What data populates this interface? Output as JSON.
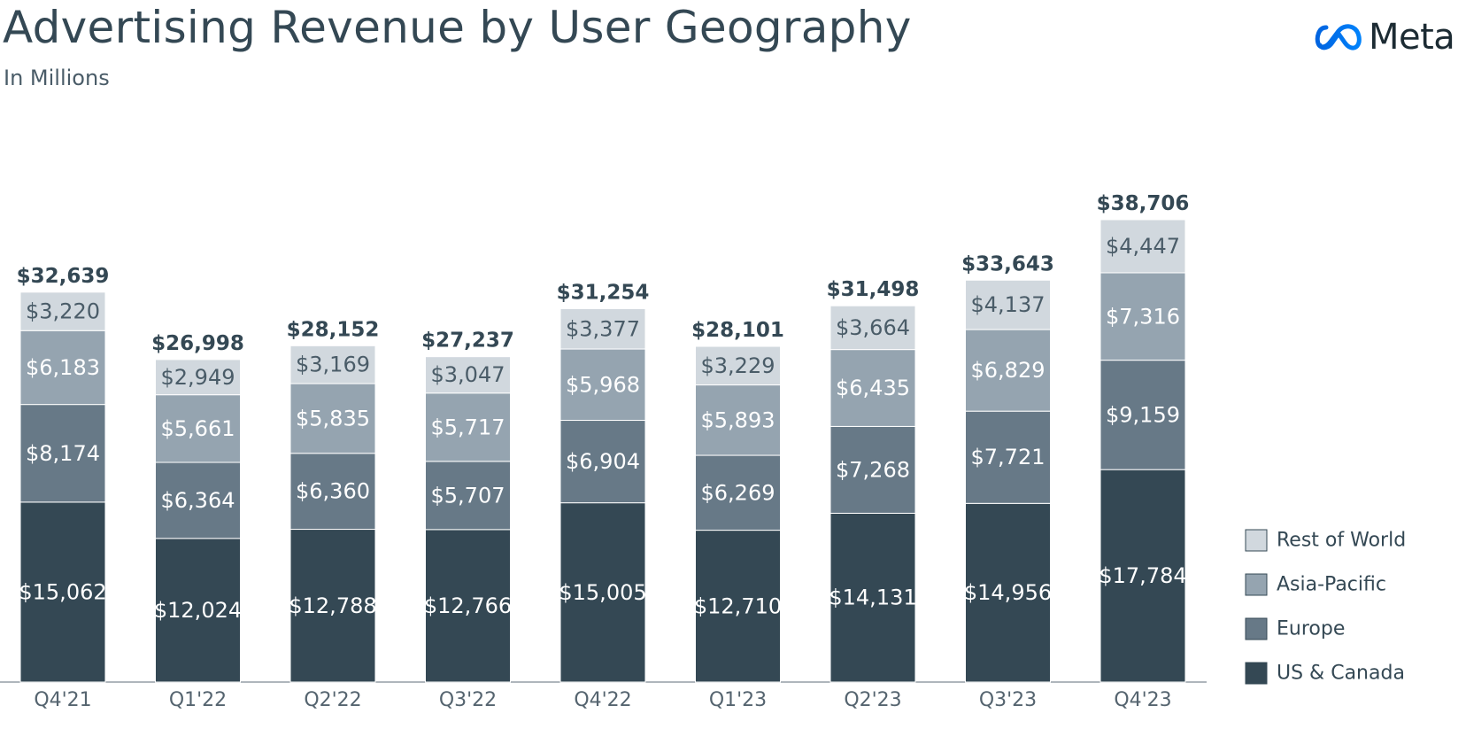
{
  "header": {
    "title": "Advertising Revenue by User Geography",
    "subtitle": "In Millions",
    "logo_text": "Meta"
  },
  "chart_data": {
    "type": "bar",
    "stacked": true,
    "title": "Advertising Revenue by User Geography",
    "subtitle": "In Millions",
    "xlabel": "",
    "ylabel": "",
    "ylim": [
      0,
      38706
    ],
    "grid": false,
    "legend_position": "bottom-right",
    "categories": [
      "Q4'21",
      "Q1'22",
      "Q2'22",
      "Q3'22",
      "Q4'22",
      "Q1'23",
      "Q2'23",
      "Q3'23",
      "Q4'23"
    ],
    "series": [
      {
        "name": "US & Canada",
        "color": "#344854",
        "label_color": "#ffffff",
        "values": [
          15062,
          12024,
          12788,
          12766,
          15005,
          12710,
          14131,
          14956,
          17784
        ],
        "labels": [
          "$15,062",
          "$12,024",
          "$12,788",
          "$12,766",
          "$15,005",
          "$12,710",
          "$14,131",
          "$14,956",
          "$17,784"
        ]
      },
      {
        "name": "Europe",
        "color": "#677987",
        "label_color": "#ffffff",
        "values": [
          8174,
          6364,
          6360,
          5707,
          6904,
          6269,
          7268,
          7721,
          9159
        ],
        "labels": [
          "$8,174",
          "$6,364",
          "$6,360",
          "$5,707",
          "$6,904",
          "$6,269",
          "$7,268",
          "$7,721",
          "$9,159"
        ]
      },
      {
        "name": "Asia-Pacific",
        "color": "#95a4b0",
        "label_color": "#ffffff",
        "values": [
          6183,
          5661,
          5835,
          5717,
          5968,
          5893,
          6435,
          6829,
          7316
        ],
        "labels": [
          "$6,183",
          "$5,661",
          "$5,835",
          "$5,717",
          "$5,968",
          "$5,893",
          "$6,435",
          "$6,829",
          "$7,316"
        ]
      },
      {
        "name": "Rest of World",
        "color": "#d1d8de",
        "label_color": "#4a5c68",
        "values": [
          3220,
          2949,
          3169,
          3047,
          3377,
          3229,
          3664,
          4137,
          4447
        ],
        "labels": [
          "$3,220",
          "$2,949",
          "$3,169",
          "$3,047",
          "$3,377",
          "$3,229",
          "$3,664",
          "$4,137",
          "$4,447"
        ]
      }
    ],
    "totals": [
      32639,
      26998,
      28152,
      27237,
      31254,
      28101,
      31498,
      33643,
      38706
    ],
    "total_labels": [
      "$32,639",
      "$26,998",
      "$28,152",
      "$27,237",
      "$31,254",
      "$28,101",
      "$31,498",
      "$33,643",
      "$38,706"
    ],
    "legend_order": [
      "Rest of World",
      "Asia-Pacific",
      "Europe",
      "US & Canada"
    ]
  }
}
